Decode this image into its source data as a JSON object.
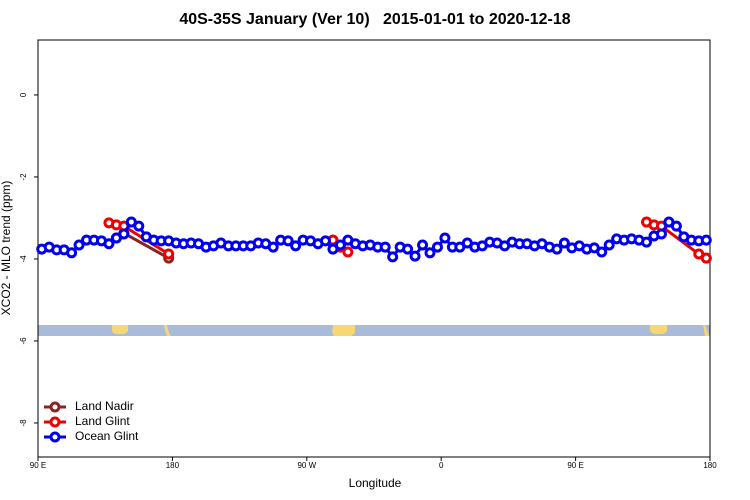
{
  "chart_data": {
    "type": "line",
    "title": "40S-35S January (Ver 10)   2015-01-01 to 2020-12-18",
    "x_label": "Longitude",
    "y_label": "XCO2 - MLO trend (ppm)",
    "xlim": [
      90,
      540
    ],
    "ylim": [
      -8.83,
      1.34
    ],
    "xticks": [
      {
        "value": 90,
        "label": "90 E"
      },
      180,
      {
        "value": 270,
        "label": "90 W"
      },
      {
        "value": 360,
        "label": "0"
      },
      {
        "value": 450,
        "label": "90 E"
      },
      {
        "value": 540,
        "label": "180"
      }
    ],
    "yticks": [
      -8,
      -6,
      -4,
      -2,
      0
    ],
    "legend": "bottom-left",
    "series": [
      {
        "name": "Land Nadir",
        "color": "#8b2323",
        "x": [
          142.5,
          147.5,
          177.5,
          277.5,
          287.5,
          527.5,
          537.5
        ],
        "values": [
          -3.49,
          -3.37,
          -3.98,
          null,
          -3.54,
          null,
          -3.98
        ]
      },
      {
        "name": "Land Glint",
        "color": "#ee0000",
        "x": [
          137.5,
          142.5,
          147.5,
          177.5,
          182.5,
          287.5,
          292.5,
          297.5,
          302.5,
          497.5,
          502.5,
          507.5,
          532.5,
          537.5
        ],
        "values": [
          -3.12,
          -3.17,
          -3.2,
          -3.88,
          null,
          -3.54,
          -3.71,
          -3.83,
          null,
          -3.1,
          -3.17,
          -3.2,
          -3.88,
          -3.98
        ]
      },
      {
        "name": "Ocean Glint",
        "color": "#0000ee",
        "x": [
          92.5,
          97.5,
          102.5,
          107.5,
          112.5,
          117.5,
          122.5,
          127.5,
          132.5,
          137.5,
          142.5,
          147.5,
          152.5,
          157.5,
          162.5,
          167.5,
          172.5,
          177.5,
          182.5,
          187.5,
          192.5,
          197.5,
          202.5,
          207.5,
          212.5,
          217.5,
          222.5,
          227.5,
          232.5,
          237.5,
          242.5,
          247.5,
          252.5,
          257.5,
          262.5,
          267.5,
          272.5,
          277.5,
          282.5,
          287.5,
          292.5,
          297.5,
          302.5,
          307.5,
          312.5,
          317.5,
          322.5,
          327.5,
          332.5,
          337.5,
          342.5,
          347.5,
          352.5,
          357.5,
          362.5,
          367.5,
          372.5,
          377.5,
          382.5,
          387.5,
          392.5,
          397.5,
          402.5,
          407.5,
          412.5,
          417.5,
          422.5,
          427.5,
          432.5,
          437.5,
          442.5,
          447.5,
          452.5,
          457.5,
          462.5,
          467.5,
          472.5,
          477.5,
          482.5,
          487.5,
          492.5,
          497.5,
          502.5,
          507.5,
          512.5,
          517.5,
          522.5,
          527.5,
          532.5,
          537.5
        ],
        "values": [
          -3.76,
          -3.71,
          -3.78,
          -3.78,
          -3.85,
          -3.66,
          -3.54,
          -3.54,
          -3.56,
          -3.63,
          -3.49,
          -3.39,
          -3.1,
          -3.2,
          -3.46,
          -3.54,
          -3.56,
          -3.56,
          -3.61,
          -3.63,
          -3.61,
          -3.63,
          -3.71,
          -3.68,
          -3.61,
          -3.68,
          -3.68,
          -3.68,
          -3.68,
          -3.61,
          -3.63,
          -3.71,
          -3.54,
          -3.56,
          -3.68,
          -3.54,
          -3.56,
          -3.63,
          -3.56,
          -3.76,
          -3.66,
          -3.54,
          -3.63,
          -3.68,
          -3.66,
          -3.71,
          -3.71,
          -3.95,
          -3.71,
          -3.76,
          -3.93,
          -3.66,
          -3.85,
          -3.71,
          -3.49,
          -3.71,
          -3.71,
          -3.61,
          -3.71,
          -3.68,
          -3.59,
          -3.61,
          -3.68,
          -3.59,
          -3.63,
          -3.63,
          -3.68,
          -3.63,
          -3.71,
          -3.76,
          -3.61,
          -3.73,
          -3.68,
          -3.76,
          -3.73,
          -3.83,
          -3.66,
          -3.51,
          -3.54,
          -3.51,
          -3.54,
          -3.59,
          -3.44,
          -3.39,
          -3.1,
          -3.2,
          -3.46,
          -3.54,
          -3.56,
          -3.54
        ]
      }
    ]
  }
}
